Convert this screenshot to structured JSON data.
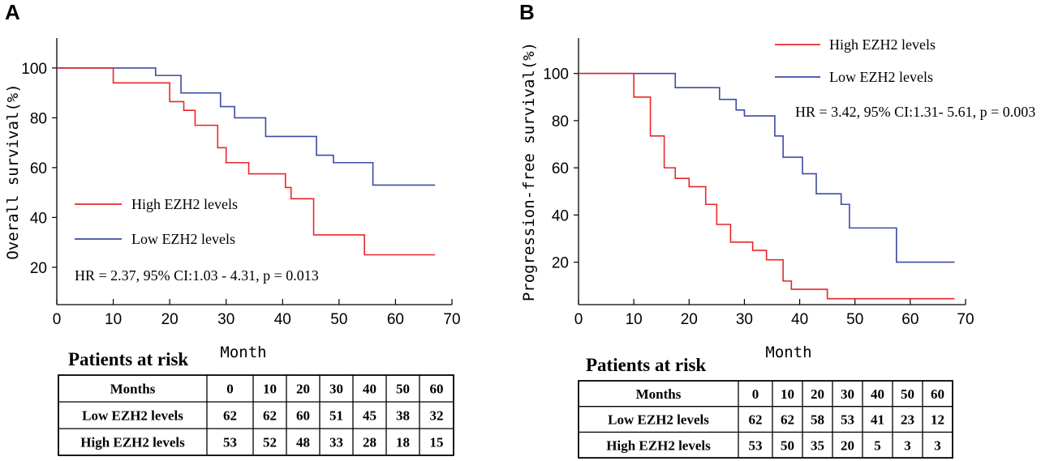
{
  "chart_data": [
    {
      "type": "line",
      "panel_label": "A",
      "title": "",
      "xlabel": "Month",
      "ylabel": "Overall survival(%)",
      "xlim": [
        0,
        70
      ],
      "ylim": [
        5,
        112
      ],
      "xticks": [
        0,
        10,
        20,
        30,
        40,
        50,
        60,
        70
      ],
      "yticks": [
        20,
        40,
        60,
        80,
        100
      ],
      "colors": {
        "high": "#e8262b",
        "low": "#3c4aa3"
      },
      "legend": {
        "position": "middle-left",
        "entries": [
          "High  EZH2 levels",
          "Low  EZH2 levels"
        ]
      },
      "annotation": "HR = 2.37, 95% CI:1.03 - 4.31, p = 0.013",
      "series": [
        {
          "name": "High  EZH2 levels",
          "key": "high",
          "x": [
            0,
            10,
            20,
            22.5,
            24.5,
            28.5,
            30,
            34,
            40.5,
            41.5,
            45.5,
            54.5,
            67
          ],
          "y": [
            100,
            94,
            86.5,
            83,
            77,
            68,
            62,
            57.5,
            52,
            47.5,
            33,
            25,
            25
          ]
        },
        {
          "name": "Low  EZH2 levels",
          "key": "low",
          "x": [
            0,
            17.5,
            22,
            29,
            31.5,
            37,
            46,
            49,
            56,
            67
          ],
          "y": [
            100,
            97,
            90,
            84.5,
            80,
            72.5,
            65,
            62,
            53,
            53
          ]
        }
      ],
      "risk_table": {
        "title": "Patients at risk",
        "header": [
          "Months",
          "0",
          "10",
          "20",
          "30",
          "40",
          "50",
          "60"
        ],
        "rows": [
          [
            "Low EZH2 levels",
            "62",
            "62",
            "60",
            "51",
            "45",
            "38",
            "32"
          ],
          [
            "High EZH2 levels",
            "53",
            "52",
            "48",
            "33",
            "28",
            "18",
            "15"
          ]
        ]
      }
    },
    {
      "type": "line",
      "panel_label": "B",
      "title": "",
      "xlabel": "Month",
      "ylabel": "Progression-free survival(%)",
      "xlim": [
        0,
        70
      ],
      "ylim": [
        2,
        115
      ],
      "xticks": [
        0,
        10,
        20,
        30,
        40,
        50,
        60,
        70
      ],
      "yticks": [
        20,
        40,
        60,
        80,
        100
      ],
      "colors": {
        "high": "#e8262b",
        "low": "#3c4aa3"
      },
      "legend": {
        "position": "top-right",
        "entries": [
          "High  EZH2 levels",
          "Low  EZH2 levels"
        ]
      },
      "annotation": "HR = 3.42, 95% CI:1.31- 5.61, p = 0.003",
      "series": [
        {
          "name": "High  EZH2 levels",
          "key": "high",
          "x": [
            0,
            10,
            13,
            15.5,
            17.5,
            20,
            23,
            25,
            27.5,
            31.5,
            34,
            37,
            38.5,
            45,
            68
          ],
          "y": [
            100,
            90,
            73.5,
            60,
            55.5,
            52,
            44.5,
            36,
            28.5,
            25,
            21,
            12,
            8.5,
            4.5,
            4.5
          ]
        },
        {
          "name": "Low  EZH2 levels",
          "key": "low",
          "x": [
            0,
            17.5,
            25.5,
            28.5,
            30,
            35.5,
            37,
            40.5,
            43,
            47.5,
            49,
            57.5,
            68
          ],
          "y": [
            100,
            94,
            89,
            84.5,
            82,
            73.5,
            64.5,
            57.5,
            49,
            44.5,
            34.5,
            20,
            20
          ]
        }
      ],
      "risk_table": {
        "title": "Patients at risk",
        "header": [
          "Months",
          "0",
          "10",
          "20",
          "30",
          "40",
          "50",
          "60"
        ],
        "rows": [
          [
            "Low EZH2 levels",
            "62",
            "62",
            "58",
            "53",
            "41",
            "23",
            "12"
          ],
          [
            "High EZH2 levels",
            "53",
            "50",
            "35",
            "20",
            "5",
            "3",
            "3"
          ]
        ]
      }
    }
  ]
}
